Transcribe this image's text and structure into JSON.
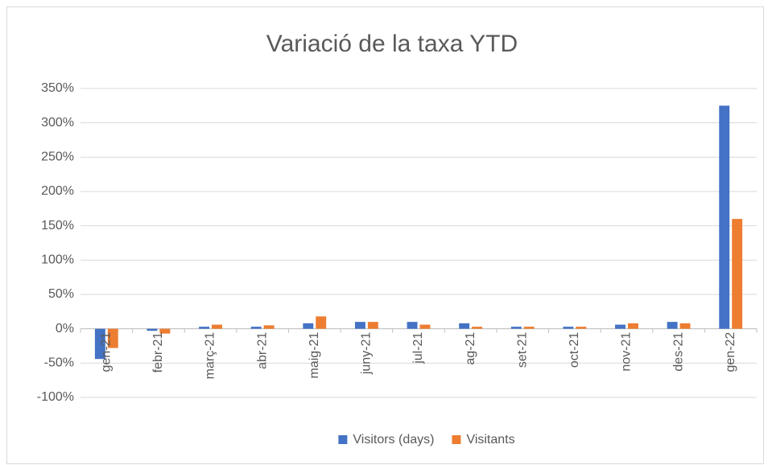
{
  "chart_data": {
    "type": "bar",
    "title": "Variació de la taxa YTD",
    "categories": [
      "gen-21",
      "febr-21",
      "març-21",
      "abr-21",
      "maig-21",
      "juny-21",
      "jul-21",
      "ag-21",
      "set-21",
      "oct-21",
      "nov-21",
      "des-21",
      "gen-22"
    ],
    "series": [
      {
        "name": "Visitors (days)",
        "color": "#4472c4",
        "values": [
          -44,
          -3,
          3,
          3,
          8,
          10,
          10,
          8,
          3,
          3,
          6,
          10,
          325
        ]
      },
      {
        "name": "Visitants",
        "color": "#ed7d31",
        "values": [
          -28,
          -7,
          6,
          5,
          18,
          10,
          6,
          3,
          3,
          3,
          8,
          8,
          160
        ]
      }
    ],
    "ylim": [
      -100,
      350
    ],
    "yticks": [
      {
        "value": -100,
        "label": "-100%"
      },
      {
        "value": -50,
        "label": "-50%"
      },
      {
        "value": 0,
        "label": "0%"
      },
      {
        "value": 50,
        "label": "50%"
      },
      {
        "value": 100,
        "label": "100%"
      },
      {
        "value": 150,
        "label": "150%"
      },
      {
        "value": 200,
        "label": "200%"
      },
      {
        "value": 250,
        "label": "250%"
      },
      {
        "value": 300,
        "label": "300%"
      },
      {
        "value": 350,
        "label": "350%"
      }
    ],
    "grid": true,
    "legend": "bottom"
  }
}
